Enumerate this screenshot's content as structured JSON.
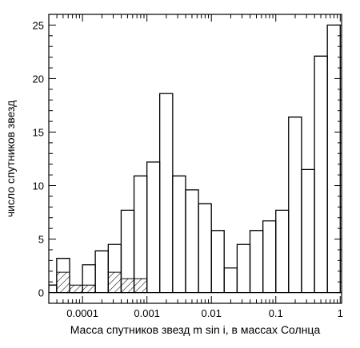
{
  "chart_data": {
    "type": "histogram",
    "title": "",
    "xlabel": "Масса спутников звезд m sin i, в массах Солнца",
    "ylabel": "число спутников звезд",
    "x_scale": "log",
    "xlim": [
      3e-05,
      1.05
    ],
    "ylim": [
      -1,
      26
    ],
    "x_ticks": [
      {
        "value": 0.0001,
        "label": "0.0001"
      },
      {
        "value": 0.001,
        "label": "0.001"
      },
      {
        "value": 0.01,
        "label": "0.01"
      },
      {
        "value": 0.1,
        "label": "0.1"
      },
      {
        "value": 1,
        "label": "1"
      }
    ],
    "y_ticks": [
      {
        "value": 0,
        "label": "0"
      },
      {
        "value": 5,
        "label": "5"
      },
      {
        "value": 10,
        "label": "10"
      },
      {
        "value": 15,
        "label": "15"
      },
      {
        "value": 20,
        "label": "20"
      },
      {
        "value": 25,
        "label": "25"
      }
    ],
    "grid": false,
    "legend": "none",
    "series": [
      {
        "style": "step-outline",
        "bins": [
          {
            "x0": 3e-05,
            "x1": 3.98e-05,
            "y": 0.7
          },
          {
            "x0": 3.98e-05,
            "x1": 6.31e-05,
            "y": 3.2
          },
          {
            "x0": 6.31e-05,
            "x1": 0.0001,
            "y": 0.0
          },
          {
            "x0": 0.0001,
            "x1": 0.000158,
            "y": 2.6
          },
          {
            "x0": 0.000158,
            "x1": 0.000251,
            "y": 3.9
          },
          {
            "x0": 0.000251,
            "x1": 0.000398,
            "y": 4.5
          },
          {
            "x0": 0.000398,
            "x1": 0.000631,
            "y": 7.7
          },
          {
            "x0": 0.000631,
            "x1": 0.001,
            "y": 10.9
          },
          {
            "x0": 0.001,
            "x1": 0.00158,
            "y": 12.2
          },
          {
            "x0": 0.00158,
            "x1": 0.00251,
            "y": 18.6
          },
          {
            "x0": 0.00251,
            "x1": 0.00398,
            "y": 10.9
          },
          {
            "x0": 0.00398,
            "x1": 0.00631,
            "y": 9.6
          },
          {
            "x0": 0.00631,
            "x1": 0.01,
            "y": 8.3
          },
          {
            "x0": 0.01,
            "x1": 0.0158,
            "y": 5.8
          },
          {
            "x0": 0.0158,
            "x1": 0.0251,
            "y": 2.3
          },
          {
            "x0": 0.0251,
            "x1": 0.0398,
            "y": 4.5
          },
          {
            "x0": 0.0398,
            "x1": 0.0631,
            "y": 5.8
          },
          {
            "x0": 0.0631,
            "x1": 0.1,
            "y": 6.7
          },
          {
            "x0": 0.1,
            "x1": 0.158,
            "y": 7.7
          },
          {
            "x0": 0.158,
            "x1": 0.251,
            "y": 16.4
          },
          {
            "x0": 0.251,
            "x1": 0.398,
            "y": 11.5
          },
          {
            "x0": 0.398,
            "x1": 0.631,
            "y": 22.1
          },
          {
            "x0": 0.631,
            "x1": 1.0,
            "y": 25.0
          }
        ]
      },
      {
        "style": "hatched",
        "bins": [
          {
            "x0": 3.98e-05,
            "x1": 6.31e-05,
            "y": 1.9
          },
          {
            "x0": 6.31e-05,
            "x1": 0.0001,
            "y": 0.7
          },
          {
            "x0": 0.0001,
            "x1": 0.000158,
            "y": 0.7
          },
          {
            "x0": 0.000251,
            "x1": 0.000398,
            "y": 1.9
          },
          {
            "x0": 0.000398,
            "x1": 0.000631,
            "y": 1.3
          },
          {
            "x0": 0.000631,
            "x1": 0.001,
            "y": 1.3
          }
        ]
      }
    ]
  }
}
